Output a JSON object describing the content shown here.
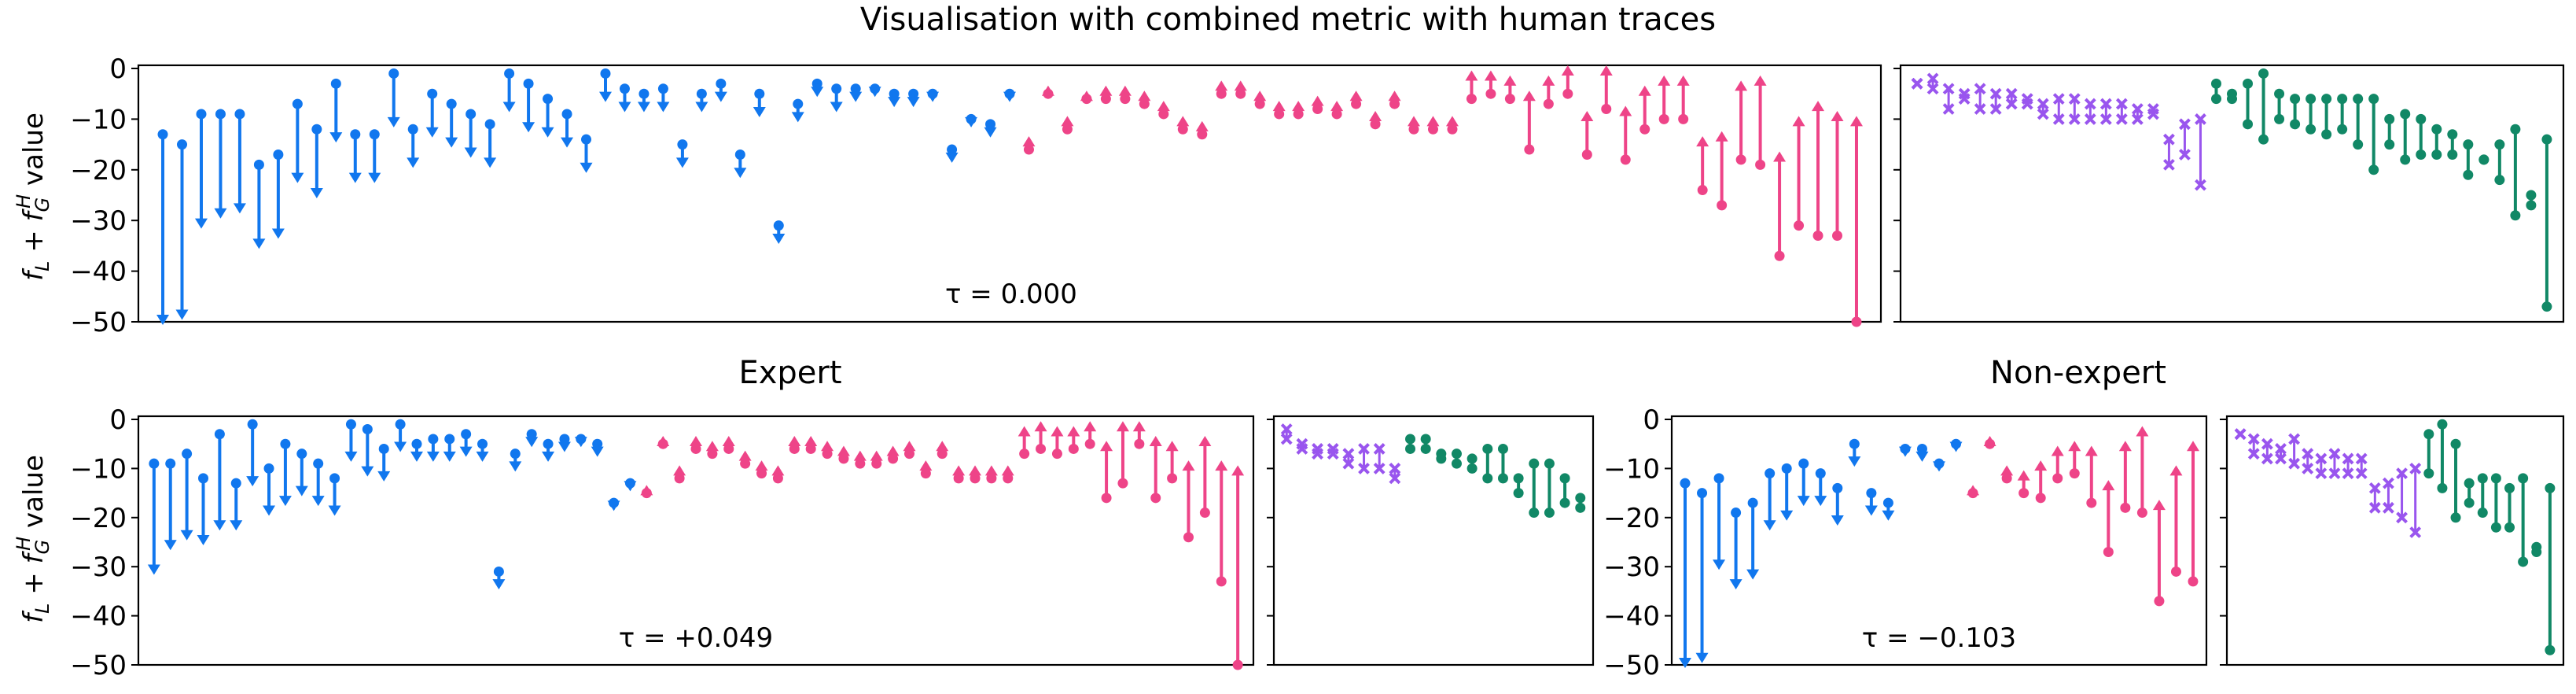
{
  "figure": {
    "title": "Visualisation with combined metric with human traces",
    "ylabel": "f_L + f_G^H value",
    "colors": {
      "down": "#1177ee",
      "up": "#ee4488",
      "small_cross": "#9955ee",
      "small_dot": "#118866"
    }
  },
  "chart_data": [
    {
      "id": "all",
      "type": "arrow-range",
      "title": "",
      "annotation": "τ = 0.000",
      "ylim": [
        -50,
        0
      ],
      "yticks": [
        0,
        -10,
        -20,
        -30,
        -40,
        -50
      ],
      "down": [
        [
          -13,
          -50
        ],
        [
          -15,
          -49
        ],
        [
          -9,
          -31
        ],
        [
          -9,
          -29
        ],
        [
          -9,
          -28
        ],
        [
          -19,
          -35
        ],
        [
          -17,
          -33
        ],
        [
          -7,
          -22
        ],
        [
          -12,
          -25
        ],
        [
          -3,
          -14
        ],
        [
          -13,
          -22
        ],
        [
          -13,
          -22
        ],
        [
          -1,
          -11
        ],
        [
          -12,
          -19
        ],
        [
          -5,
          -13
        ],
        [
          -7,
          -15
        ],
        [
          -9,
          -17
        ],
        [
          -11,
          -19
        ],
        [
          -1,
          -8
        ],
        [
          -3,
          -12
        ],
        [
          -6,
          -13
        ],
        [
          -9,
          -15
        ],
        [
          -14,
          -20
        ],
        [
          -1,
          -6
        ],
        [
          -4,
          -8
        ],
        [
          -5,
          -8
        ],
        [
          -4,
          -8
        ],
        [
          -15,
          -19
        ],
        [
          -5,
          -8
        ],
        [
          -3,
          -6
        ],
        [
          -17,
          -21
        ],
        [
          -5,
          -9
        ],
        [
          -31,
          -34
        ],
        [
          -7,
          -10
        ],
        [
          -3,
          -5
        ],
        [
          -4,
          -8
        ],
        [
          -4,
          -6
        ],
        [
          -4,
          -5
        ],
        [
          -5,
          -7
        ],
        [
          -5,
          -7
        ],
        [
          -5,
          -6
        ],
        [
          -16,
          -18
        ],
        [
          -10,
          -11
        ],
        [
          -11,
          -13
        ],
        [
          -5,
          -6
        ]
      ],
      "up": [
        [
          -16,
          -14
        ],
        [
          -5,
          -4
        ],
        [
          -12,
          -10
        ],
        [
          -6,
          -5
        ],
        [
          -6,
          -4
        ],
        [
          -6,
          -4
        ],
        [
          -7,
          -5
        ],
        [
          -9,
          -7
        ],
        [
          -12,
          -10
        ],
        [
          -13,
          -11
        ],
        [
          -5,
          -3
        ],
        [
          -5,
          -3
        ],
        [
          -7,
          -5
        ],
        [
          -9,
          -7
        ],
        [
          -9,
          -7
        ],
        [
          -8,
          -6
        ],
        [
          -9,
          -7
        ],
        [
          -7,
          -5
        ],
        [
          -11,
          -9
        ],
        [
          -7,
          -5
        ],
        [
          -12,
          -10
        ],
        [
          -12,
          -10
        ],
        [
          -12,
          -10
        ],
        [
          -6,
          -1
        ],
        [
          -5,
          -1
        ],
        [
          -6,
          -2
        ],
        [
          -16,
          -5
        ],
        [
          -7,
          -2
        ],
        [
          -5,
          0
        ],
        [
          -17,
          -9
        ],
        [
          -8,
          0
        ],
        [
          -18,
          -8
        ],
        [
          -12,
          -4
        ],
        [
          -10,
          -2
        ],
        [
          -10,
          -2
        ],
        [
          -24,
          -14
        ],
        [
          -27,
          -13
        ],
        [
          -18,
          -3
        ],
        [
          -19,
          -2
        ],
        [
          -37,
          -17
        ],
        [
          -31,
          -10
        ],
        [
          -33,
          -7
        ],
        [
          -33,
          -9
        ],
        [
          -50,
          -10
        ]
      ]
    },
    {
      "id": "all_small",
      "type": "range",
      "ylim": [
        -50,
        0
      ],
      "cross": [
        [
          -3,
          -3
        ],
        [
          -2,
          -4
        ],
        [
          -4,
          -8
        ],
        [
          -5,
          -6
        ],
        [
          -4,
          -8
        ],
        [
          -5,
          -8
        ],
        [
          -5,
          -7
        ],
        [
          -6,
          -7
        ],
        [
          -7,
          -9
        ],
        [
          -6,
          -10
        ],
        [
          -6,
          -10
        ],
        [
          -7,
          -10
        ],
        [
          -7,
          -10
        ],
        [
          -7,
          -10
        ],
        [
          -8,
          -10
        ],
        [
          -8,
          -9
        ],
        [
          -14,
          -19
        ],
        [
          -11,
          -17
        ],
        [
          -10,
          -23
        ]
      ],
      "dot": [
        [
          -3,
          -6
        ],
        [
          -5,
          -6
        ],
        [
          -3,
          -11
        ],
        [
          -1,
          -14
        ],
        [
          -5,
          -10
        ],
        [
          -6,
          -11
        ],
        [
          -6,
          -12
        ],
        [
          -6,
          -13
        ],
        [
          -6,
          -12
        ],
        [
          -6,
          -15
        ],
        [
          -6,
          -20
        ],
        [
          -10,
          -15
        ],
        [
          -9,
          -18
        ],
        [
          -10,
          -17
        ],
        [
          -12,
          -17
        ],
        [
          -13,
          -17
        ],
        [
          -15,
          -21
        ],
        [
          -18,
          -18
        ],
        [
          -15,
          -22
        ],
        [
          -12,
          -29
        ],
        [
          -25,
          -27
        ],
        [
          -14,
          -47
        ]
      ]
    },
    {
      "id": "expert",
      "type": "arrow-range",
      "title": "Expert",
      "annotation": "τ = +0.049",
      "ylim": [
        -50,
        0
      ],
      "yticks": [
        0,
        -10,
        -20,
        -30,
        -40,
        -50
      ],
      "down": [
        [
          -9,
          -31
        ],
        [
          -9,
          -26
        ],
        [
          -7,
          -24
        ],
        [
          -12,
          -25
        ],
        [
          -3,
          -22
        ],
        [
          -13,
          -22
        ],
        [
          -1,
          -13
        ],
        [
          -10,
          -19
        ],
        [
          -5,
          -17
        ],
        [
          -7,
          -15
        ],
        [
          -9,
          -17
        ],
        [
          -12,
          -19
        ],
        [
          -1,
          -8
        ],
        [
          -2,
          -11
        ],
        [
          -6,
          -12
        ],
        [
          -1,
          -6
        ],
        [
          -5,
          -8
        ],
        [
          -4,
          -8
        ],
        [
          -4,
          -8
        ],
        [
          -3,
          -7
        ],
        [
          -5,
          -8
        ],
        [
          -31,
          -34
        ],
        [
          -7,
          -10
        ],
        [
          -3,
          -5
        ],
        [
          -5,
          -8
        ],
        [
          -4,
          -6
        ],
        [
          -4,
          -5
        ],
        [
          -5,
          -7
        ],
        [
          -17,
          -18
        ],
        [
          -13,
          -14
        ]
      ],
      "up": [
        [
          -15,
          -14
        ],
        [
          -5,
          -4
        ],
        [
          -12,
          -10
        ],
        [
          -6,
          -4
        ],
        [
          -7,
          -5
        ],
        [
          -6,
          -4
        ],
        [
          -9,
          -7
        ],
        [
          -11,
          -9
        ],
        [
          -12,
          -10
        ],
        [
          -6,
          -4
        ],
        [
          -6,
          -4
        ],
        [
          -7,
          -5
        ],
        [
          -8,
          -6
        ],
        [
          -9,
          -7
        ],
        [
          -9,
          -7
        ],
        [
          -8,
          -6
        ],
        [
          -7,
          -5
        ],
        [
          -11,
          -9
        ],
        [
          -7,
          -5
        ],
        [
          -12,
          -10
        ],
        [
          -12,
          -10
        ],
        [
          -12,
          -10
        ],
        [
          -12,
          -10
        ],
        [
          -7,
          -2
        ],
        [
          -6,
          -1
        ],
        [
          -7,
          -2
        ],
        [
          -6,
          -2
        ],
        [
          -5,
          -1
        ],
        [
          -16,
          -5
        ],
        [
          -13,
          -1
        ],
        [
          -5,
          -1
        ],
        [
          -16,
          -4
        ],
        [
          -12,
          -5
        ],
        [
          -24,
          -9
        ],
        [
          -19,
          -4
        ],
        [
          -33,
          -9
        ],
        [
          -50,
          -10
        ]
      ]
    },
    {
      "id": "expert_small",
      "type": "range",
      "ylim": [
        -50,
        0
      ],
      "cross": [
        [
          -2,
          -4
        ],
        [
          -5,
          -6
        ],
        [
          -6,
          -7
        ],
        [
          -6,
          -7
        ],
        [
          -7,
          -9
        ],
        [
          -6,
          -10
        ],
        [
          -6,
          -10
        ],
        [
          -10,
          -12
        ]
      ],
      "dot": [
        [
          -4,
          -6
        ],
        [
          -4,
          -6
        ],
        [
          -7,
          -8
        ],
        [
          -7,
          -9
        ],
        [
          -8,
          -10
        ],
        [
          -6,
          -12
        ],
        [
          -6,
          -12
        ],
        [
          -12,
          -15
        ],
        [
          -9,
          -19
        ],
        [
          -9,
          -19
        ],
        [
          -12,
          -17
        ],
        [
          -16,
          -18
        ]
      ]
    },
    {
      "id": "non_expert",
      "type": "arrow-range",
      "title": "Non-expert",
      "annotation": "τ = −0.103",
      "ylim": [
        -50,
        0
      ],
      "yticks": [
        0,
        -10,
        -20,
        -30,
        -40,
        -50
      ],
      "down": [
        [
          -13,
          -50
        ],
        [
          -15,
          -49
        ],
        [
          -12,
          -30
        ],
        [
          -19,
          -34
        ],
        [
          -17,
          -32
        ],
        [
          -11,
          -22
        ],
        [
          -10,
          -20
        ],
        [
          -9,
          -17
        ],
        [
          -11,
          -17
        ],
        [
          -14,
          -21
        ],
        [
          -5,
          -9
        ],
        [
          -15,
          -19
        ],
        [
          -17,
          -20
        ],
        [
          -6,
          -7
        ],
        [
          -6,
          -8
        ],
        [
          -9,
          -10
        ],
        [
          -5,
          -6
        ]
      ],
      "up": [
        [
          -15,
          -14
        ],
        [
          -5,
          -4
        ],
        [
          -12,
          -10
        ],
        [
          -15,
          -11
        ],
        [
          -16,
          -9
        ],
        [
          -12,
          -6
        ],
        [
          -11,
          -5
        ],
        [
          -17,
          -6
        ],
        [
          -27,
          -13
        ],
        [
          -18,
          -5
        ],
        [
          -19,
          -2
        ],
        [
          -37,
          -17
        ],
        [
          -31,
          -10
        ],
        [
          -33,
          -5
        ]
      ],
      "tick_labels": [
        "0",
        "−10",
        "−20",
        "−30",
        "−40",
        "−50"
      ]
    },
    {
      "id": "non_expert_small",
      "type": "range",
      "ylim": [
        -50,
        0
      ],
      "cross": [
        [
          -3,
          -3
        ],
        [
          -4,
          -7
        ],
        [
          -5,
          -8
        ],
        [
          -6,
          -8
        ],
        [
          -4,
          -9
        ],
        [
          -7,
          -10
        ],
        [
          -8,
          -11
        ],
        [
          -7,
          -11
        ],
        [
          -8,
          -11
        ],
        [
          -8,
          -11
        ],
        [
          -14,
          -18
        ],
        [
          -13,
          -18
        ],
        [
          -11,
          -20
        ],
        [
          -10,
          -23
        ]
      ],
      "dot": [
        [
          -3,
          -11
        ],
        [
          -1,
          -14
        ],
        [
          -5,
          -20
        ],
        [
          -13,
          -17
        ],
        [
          -12,
          -19
        ],
        [
          -12,
          -22
        ],
        [
          -14,
          -22
        ],
        [
          -12,
          -29
        ],
        [
          -26,
          -27
        ],
        [
          -14,
          -47
        ]
      ]
    }
  ]
}
